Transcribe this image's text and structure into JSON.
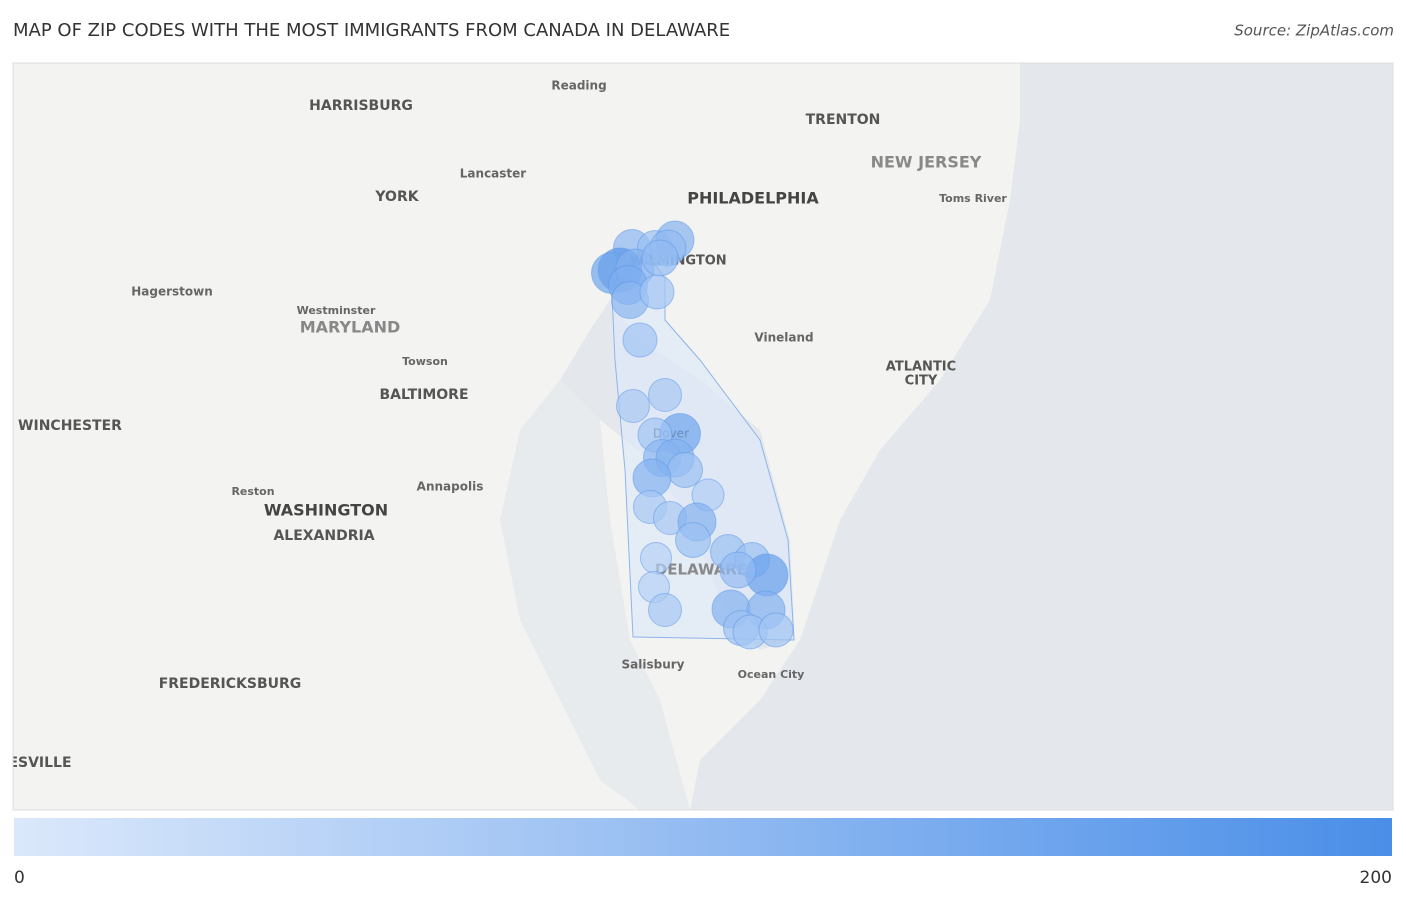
{
  "header": {
    "title": "MAP OF ZIP CODES WITH THE MOST IMMIGRANTS FROM CANADA IN DELAWARE",
    "source": "Source: ZipAtlas.com"
  },
  "map": {
    "labels": [
      "Reading",
      "HARRISBURG",
      "TRENTON",
      "NEW JERSEY",
      "Lancaster",
      "PHILADELPHIA",
      "YORK",
      "Toms River",
      "WILMINGTON",
      "Hagerstown",
      "Westminster",
      "MARYLAND",
      "Vineland",
      "Towson",
      "ATLANTIC",
      "CITY",
      "BALTIMORE",
      "WINCHESTER",
      "Dover",
      "Reston",
      "Annapolis",
      "WASHINGTON",
      "ALEXANDRIA",
      "DELAWARE",
      "Salisbury",
      "Ocean City",
      "FREDERICKSBURG",
      "ESVILLE"
    ],
    "bubbles": [
      110,
      90,
      120,
      100,
      180,
      150,
      120,
      100,
      130,
      110,
      80,
      80,
      70,
      70,
      150,
      80,
      110,
      120,
      90,
      120,
      60,
      70,
      70,
      120,
      90,
      90,
      50,
      50,
      90,
      160,
      100,
      70,
      120,
      120,
      90,
      80,
      80
    ]
  },
  "legend": {
    "min": 0,
    "max": 200,
    "color_min": "#dbe8fb",
    "color_max": "#4a8ee8"
  }
}
